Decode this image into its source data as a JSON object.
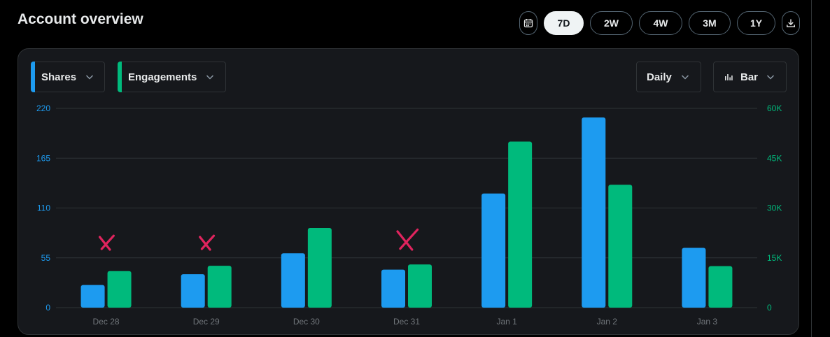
{
  "header": {
    "title": "Account overview",
    "ranges": [
      "7D",
      "2W",
      "4W",
      "3M",
      "1Y"
    ],
    "active_range": "7D"
  },
  "controls": {
    "metric_left": "Shares",
    "metric_right": "Engagements",
    "interval": "Daily",
    "chart_type": "Bar"
  },
  "colors": {
    "shares": "#1d9bf0",
    "engagements": "#00ba7c",
    "annotation": "#e0245e"
  },
  "icons": [
    "calendar-icon",
    "download-icon",
    "chevron-down-icon",
    "bar-chart-icon",
    "red-x-mark-icon"
  ],
  "chart_data": {
    "type": "bar",
    "categories": [
      "Dec 28",
      "Dec 29",
      "Dec 30",
      "Dec 31",
      "Jan 1",
      "Jan 2",
      "Jan 3"
    ],
    "series": [
      {
        "name": "Shares",
        "axis": "left",
        "color": "#1d9bf0",
        "values": [
          25,
          37,
          60,
          42,
          126,
          210,
          66
        ]
      },
      {
        "name": "Engagements",
        "axis": "right",
        "color": "#00ba7c",
        "values": [
          11000,
          12600,
          24000,
          13000,
          50000,
          37000,
          12500
        ]
      }
    ],
    "y_left": {
      "ylim": [
        0,
        220
      ],
      "ticks": [
        "0",
        "55",
        "110",
        "165",
        "220"
      ]
    },
    "y_right": {
      "ylim": [
        0,
        60000
      ],
      "ticks": [
        "0",
        "15K",
        "30K",
        "45K",
        "60K"
      ]
    },
    "grid": true,
    "annotations": {
      "marked_categories": [
        "Dec 28",
        "Dec 29",
        "Dec 31"
      ]
    }
  }
}
